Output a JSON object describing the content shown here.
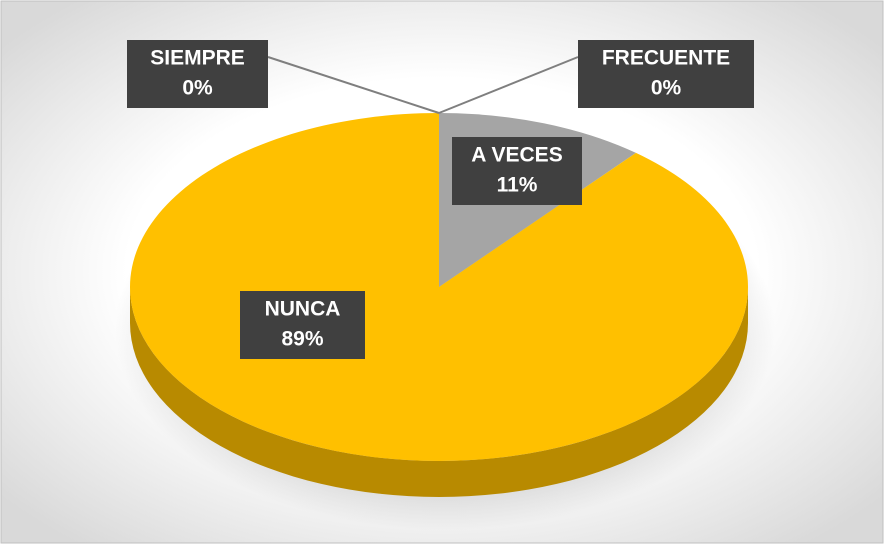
{
  "chart_data": {
    "type": "pie3d",
    "categories": [
      "SIEMPRE",
      "FRECUENTE",
      "A VECES",
      "NUNCA"
    ],
    "values": [
      0,
      0,
      11,
      89
    ],
    "value_labels": [
      "0%",
      "0%",
      "11%",
      "89%"
    ],
    "colors": [
      "#4472c4",
      "#ed7d31",
      "#a5a5a5",
      "#ffc000"
    ]
  }
}
